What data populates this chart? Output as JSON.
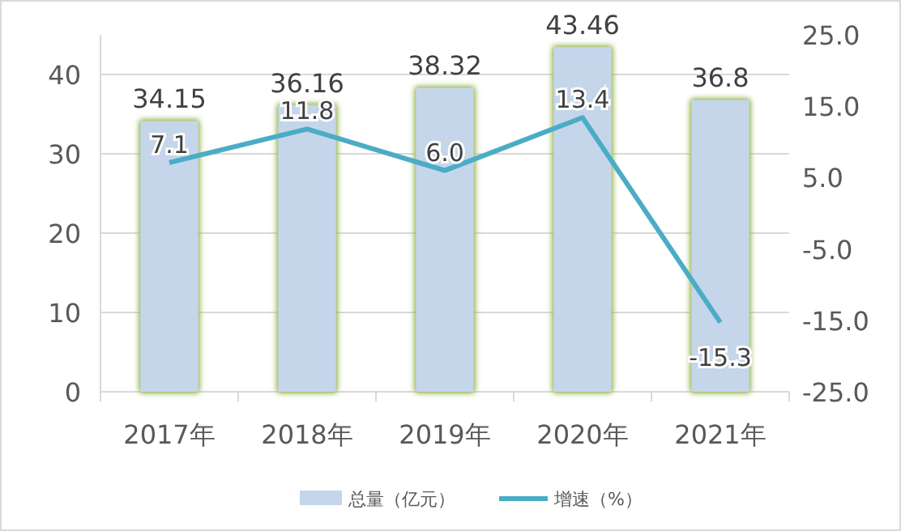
{
  "chart_data": {
    "type": "bar",
    "categories": [
      "2017年",
      "2018年",
      "2019年",
      "2020年",
      "2021年"
    ],
    "series": [
      {
        "name": "总量（亿元）",
        "color": "#c5d5ea",
        "values": [
          34.15,
          36.16,
          38.32,
          43.46,
          36.8
        ]
      },
      {
        "name": "增速（%）",
        "type": "line",
        "axis": "y2",
        "color": "#4bacc6",
        "values": [
          7.1,
          11.8,
          6.0,
          13.4,
          -15.3
        ],
        "value_labels": [
          "7.1",
          "11.8",
          "6.0",
          "13.4",
          "-15.3"
        ]
      }
    ],
    "ylim": [
      0,
      45
    ],
    "yticks": [
      0,
      10,
      20,
      30,
      40
    ],
    "y2lim": [
      -25,
      25
    ],
    "y2ticks": [
      {
        "value": -25,
        "label": "-25.0"
      },
      {
        "value": -15,
        "label": "-15.0"
      },
      {
        "value": -5,
        "label": "-5.0"
      },
      {
        "value": 5,
        "label": "5.0"
      },
      {
        "value": 15,
        "label": "15.0"
      },
      {
        "value": 25,
        "label": "25.0"
      }
    ],
    "grid": "y",
    "legend": "bottom",
    "data_labels": true,
    "marker": "none",
    "line_style": "solid"
  }
}
